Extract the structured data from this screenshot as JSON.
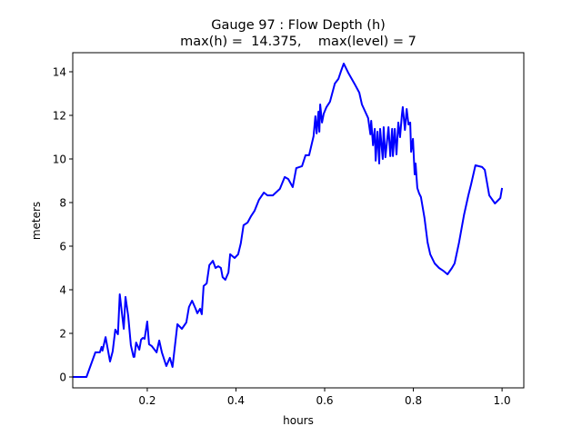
{
  "chart_data": {
    "type": "line",
    "title": "Gauge 97 : Flow Depth (h)",
    "subtitle": "max(h) =  14.375,    max(level) = 7",
    "xlabel": "hours",
    "ylabel": "meters",
    "xlim": [
      0.032,
      1.049
    ],
    "ylim": [
      -0.5,
      14.875
    ],
    "xticks": [
      0.2,
      0.4,
      0.6,
      0.8,
      1.0
    ],
    "xtick_labels": [
      "0.2",
      "0.4",
      "0.6",
      "0.8",
      "1.0"
    ],
    "yticks": [
      0,
      2,
      4,
      6,
      8,
      10,
      12,
      14
    ],
    "ytick_labels": [
      "0",
      "2",
      "4",
      "6",
      "8",
      "10",
      "12",
      "14"
    ],
    "grid": false,
    "series": [
      {
        "name": "h",
        "color": "#0000ff",
        "x": [
          0.032,
          0.063,
          0.083,
          0.093,
          0.097,
          0.099,
          0.106,
          0.116,
          0.122,
          0.128,
          0.134,
          0.138,
          0.147,
          0.151,
          0.157,
          0.163,
          0.169,
          0.171,
          0.175,
          0.182,
          0.186,
          0.19,
          0.194,
          0.2,
          0.204,
          0.21,
          0.221,
          0.227,
          0.233,
          0.243,
          0.251,
          0.257,
          0.268,
          0.278,
          0.288,
          0.294,
          0.301,
          0.309,
          0.313,
          0.319,
          0.323,
          0.327,
          0.334,
          0.34,
          0.348,
          0.354,
          0.36,
          0.366,
          0.37,
          0.376,
          0.383,
          0.387,
          0.397,
          0.405,
          0.411,
          0.417,
          0.426,
          0.434,
          0.442,
          0.452,
          0.463,
          0.471,
          0.483,
          0.499,
          0.51,
          0.518,
          0.528,
          0.536,
          0.549,
          0.557,
          0.565,
          0.575,
          0.579,
          0.582,
          0.586,
          0.588,
          0.59,
          0.594,
          0.598,
          0.604,
          0.612,
          0.623,
          0.631,
          0.637,
          0.643,
          0.653,
          0.668,
          0.678,
          0.684,
          0.698,
          0.703,
          0.705,
          0.709,
          0.713,
          0.715,
          0.719,
          0.723,
          0.725,
          0.731,
          0.733,
          0.737,
          0.744,
          0.748,
          0.752,
          0.754,
          0.758,
          0.762,
          0.766,
          0.77,
          0.774,
          0.776,
          0.781,
          0.785,
          0.789,
          0.793,
          0.795,
          0.799,
          0.803,
          0.805,
          0.809,
          0.813,
          0.817,
          0.825,
          0.832,
          0.838,
          0.848,
          0.858,
          0.867,
          0.877,
          0.887,
          0.893,
          0.903,
          0.914,
          0.924,
          0.93,
          0.94,
          0.955,
          0.961,
          0.971,
          0.984,
          0.996,
          1.0
        ],
        "y": [
          0,
          0,
          1.13,
          1.13,
          1.38,
          1.21,
          1.83,
          0.71,
          1.17,
          2.17,
          1.96,
          3.79,
          2.21,
          3.67,
          2.79,
          1.46,
          0.92,
          0.92,
          1.58,
          1.25,
          1.71,
          1.79,
          1.75,
          2.54,
          1.5,
          1.42,
          1.13,
          1.67,
          1.13,
          0.5,
          0.88,
          0.46,
          2.42,
          2.21,
          2.5,
          3.21,
          3.5,
          3.13,
          2.92,
          3.13,
          2.88,
          4.17,
          4.29,
          5.13,
          5.33,
          5.0,
          5.08,
          5.0,
          4.58,
          4.46,
          4.79,
          5.63,
          5.46,
          5.63,
          6.13,
          6.96,
          7.08,
          7.38,
          7.63,
          8.13,
          8.46,
          8.33,
          8.33,
          8.63,
          9.17,
          9.08,
          8.71,
          9.58,
          9.67,
          10.17,
          10.17,
          11.04,
          11.96,
          11.17,
          12.17,
          11.25,
          12.5,
          11.67,
          12.08,
          12.38,
          12.63,
          13.46,
          13.67,
          14.04,
          14.375,
          13.96,
          13.42,
          13.04,
          12.5,
          11.88,
          11.13,
          11.75,
          10.63,
          11.38,
          9.92,
          11.25,
          9.79,
          11.38,
          10.0,
          11.46,
          10.08,
          11.46,
          10.13,
          11.38,
          10.13,
          11.38,
          10.21,
          11.67,
          11.0,
          12.0,
          12.38,
          11.33,
          12.29,
          11.58,
          11.67,
          10.33,
          10.92,
          9.29,
          9.79,
          8.67,
          8.42,
          8.25,
          7.29,
          6.17,
          5.63,
          5.21,
          5.0,
          4.88,
          4.71,
          5.0,
          5.21,
          6.17,
          7.42,
          8.33,
          8.83,
          9.71,
          9.63,
          9.5,
          8.33,
          7.96,
          8.21,
          8.67
        ]
      }
    ]
  }
}
